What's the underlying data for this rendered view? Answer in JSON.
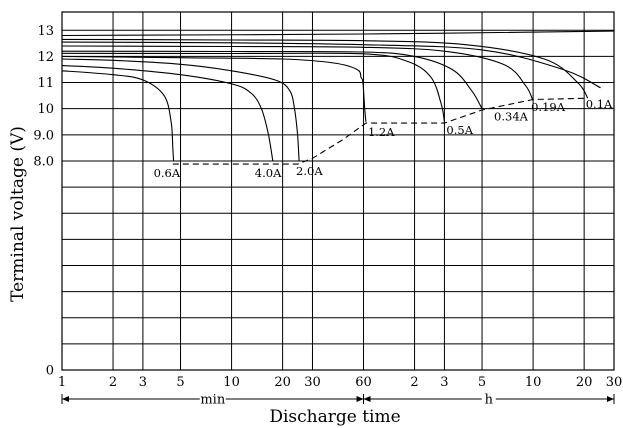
{
  "chart_data": {
    "type": "line",
    "xlabel": "Discharge time",
    "ylabel": "Terminal voltage (V)",
    "ylim": [
      0,
      13.7
    ],
    "x_scale": "log",
    "x_tick_labels": [
      "1",
      "2",
      "3",
      "5",
      "10",
      "20",
      "30",
      "60",
      "2",
      "3",
      "5",
      "10",
      "20",
      "30"
    ],
    "x_tick_minutes": [
      1,
      2,
      3,
      5,
      10,
      20,
      30,
      60,
      120,
      180,
      300,
      600,
      1200,
      1800
    ],
    "y_ticks": [
      0,
      8.0,
      9.0,
      10,
      11,
      12,
      13
    ],
    "y_tick_labels": [
      "0",
      "8.0",
      "9.0",
      "10",
      "11",
      "12",
      "13"
    ],
    "unit_ranges": [
      {
        "label": "min",
        "from_minutes": 1,
        "to_minutes": 60
      },
      {
        "label": "h",
        "from_minutes": 60,
        "to_minutes": 1800
      }
    ],
    "series": [
      {
        "name": "0.6A",
        "x_minutes": [
          1,
          2,
          3,
          4,
          4.4,
          4.5,
          4.55
        ],
        "y": [
          11.45,
          11.3,
          11.1,
          10.5,
          9.5,
          8.5,
          8.0
        ]
      },
      {
        "name": "4.0A",
        "x_minutes": [
          1,
          2,
          5,
          10,
          13,
          15,
          16.5,
          17.5
        ],
        "y": [
          11.65,
          11.55,
          11.3,
          10.95,
          10.6,
          10.0,
          9.0,
          8.0
        ]
      },
      {
        "name": "2.0A",
        "x_minutes": [
          1,
          2,
          5,
          10,
          18,
          22,
          23.5,
          24.5,
          25
        ],
        "y": [
          11.9,
          11.85,
          11.7,
          11.45,
          11.1,
          10.7,
          10.0,
          9.0,
          8.0
        ]
      },
      {
        "name": "1.2A",
        "x_minutes": [
          1,
          5,
          20,
          40,
          55,
          58,
          59.5,
          61,
          62
        ],
        "y": [
          12.0,
          11.95,
          11.9,
          11.75,
          11.5,
          11.2,
          11.0,
          10.0,
          9.5
        ]
      },
      {
        "name": "0.5A",
        "x_minutes": [
          1,
          10,
          60,
          110,
          150,
          172,
          180
        ],
        "y": [
          12.12,
          12.11,
          12.1,
          11.8,
          11.2,
          10.2,
          9.5
        ]
      },
      {
        "name": "0.34A",
        "x_minutes": [
          1,
          10,
          60,
          120,
          200,
          260,
          300
        ],
        "y": [
          12.2,
          12.19,
          12.17,
          12.0,
          11.5,
          10.7,
          10.0
        ]
      },
      {
        "name": "0.19A",
        "x_minutes": [
          1,
          10,
          60,
          180,
          400,
          540,
          600
        ],
        "y": [
          12.4,
          12.38,
          12.35,
          12.2,
          11.7,
          10.9,
          10.3
        ]
      },
      {
        "name": "0.1A",
        "x_minutes": [
          1,
          10,
          60,
          240,
          700,
          1100,
          1260
        ],
        "y": [
          12.65,
          12.63,
          12.6,
          12.45,
          11.9,
          11.0,
          10.4
        ]
      },
      {
        "name": "",
        "x_minutes": [
          1,
          10,
          60,
          300,
          900,
          1500
        ],
        "y": [
          12.55,
          12.52,
          12.45,
          12.25,
          11.5,
          10.8
        ]
      },
      {
        "name": "",
        "x_minutes": [
          1,
          60,
          1800
        ],
        "y": [
          12.8,
          12.86,
          12.97
        ]
      }
    ],
    "cutoff_curve": {
      "x_minutes": [
        4.5,
        17.5,
        24.5,
        30,
        45,
        62,
        180,
        300,
        600,
        1260
      ],
      "y": [
        7.88,
        7.88,
        7.88,
        8.1,
        8.8,
        9.45,
        9.45,
        9.95,
        10.35,
        10.4
      ]
    }
  }
}
